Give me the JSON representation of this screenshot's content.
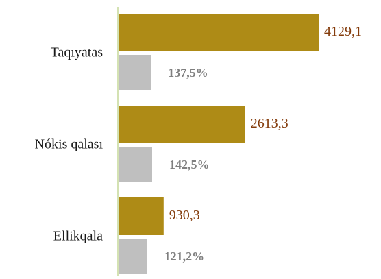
{
  "chart_data": {
    "type": "bar",
    "categories": [
      "Taqıyatas",
      "Nókis qalası",
      "Ellikqala"
    ],
    "series": [
      {
        "color": "#ae8b16",
        "values": [
          4129.1,
          2613.3,
          930.3
        ],
        "value_labels": [
          "4129,1",
          "2613,3",
          "930,3"
        ]
      },
      {
        "color": "#bfbfbf",
        "values": [
          137.5,
          142.5,
          121.2
        ],
        "value_labels": [
          "137,5%",
          "142,5%",
          "121,2%"
        ]
      }
    ]
  }
}
